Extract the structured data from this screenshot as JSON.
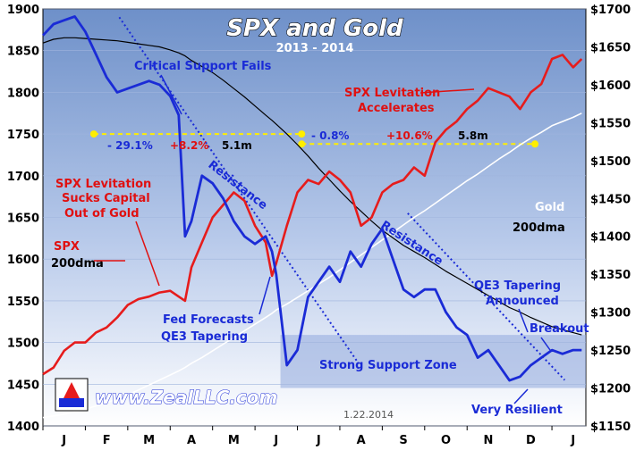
{
  "chart_data": {
    "type": "line",
    "title": "SPX and Gold",
    "subtitle": "2013 - 2014",
    "date_stamp": "1.22.2014",
    "website": "www.ZealLLC.com",
    "x_ticks": [
      "J",
      "F",
      "M",
      "A",
      "M",
      "J",
      "J",
      "A",
      "S",
      "O",
      "N",
      "D",
      "J"
    ],
    "y_left_ticks": [
      "1900",
      "1850",
      "1800",
      "1750",
      "1700",
      "1650",
      "1600",
      "1550",
      "1500",
      "1450",
      "1400"
    ],
    "y_right_ticks": [
      "$1700",
      "$1650",
      "$1600",
      "$1550",
      "$1500",
      "$1450",
      "$1400",
      "$1350",
      "$1300",
      "$1250",
      "$1200",
      "$1150"
    ],
    "ylim_left": [
      1400,
      1900
    ],
    "ylim_right": [
      1150,
      1700
    ],
    "x": [
      0,
      0.25,
      0.5,
      0.75,
      1,
      1.25,
      1.5,
      1.75,
      2,
      2.25,
      2.5,
      2.75,
      3,
      3.2,
      3.35,
      3.5,
      3.75,
      4,
      4.25,
      4.5,
      4.75,
      5,
      5.25,
      5.4,
      5.5,
      5.75,
      6,
      6.25,
      6.5,
      6.75,
      7,
      7.25,
      7.5,
      7.75,
      8,
      8.25,
      8.5,
      8.75,
      9,
      9.25,
      9.5,
      9.75,
      10,
      10.25,
      10.5,
      10.75,
      11,
      11.25,
      11.5,
      11.75,
      12,
      12.25,
      12.5,
      12.7
    ],
    "series": [
      {
        "name": "SPX",
        "axis": "left",
        "color": "#e61c1c",
        "values": [
          1462,
          1470,
          1490,
          1500,
          1500,
          1512,
          1518,
          1530,
          1545,
          1552,
          1555,
          1560,
          1562,
          1555,
          1550,
          1590,
          1620,
          1650,
          1665,
          1680,
          1670,
          1640,
          1620,
          1580,
          1595,
          1640,
          1680,
          1695,
          1690,
          1705,
          1695,
          1680,
          1640,
          1650,
          1680,
          1690,
          1695,
          1710,
          1700,
          1740,
          1755,
          1765,
          1780,
          1790,
          1805,
          1800,
          1795,
          1780,
          1800,
          1810,
          1840,
          1845,
          1830,
          1840
        ]
      },
      {
        "name": "Gold",
        "axis": "right",
        "color": "#1a2bd6",
        "values": [
          1665,
          1680,
          1685,
          1690,
          1670,
          1640,
          1610,
          1590,
          1595,
          1600,
          1605,
          1600,
          1585,
          1560,
          1400,
          1420,
          1480,
          1470,
          1450,
          1420,
          1400,
          1390,
          1400,
          1380,
          1350,
          1230,
          1250,
          1320,
          1340,
          1360,
          1340,
          1380,
          1360,
          1390,
          1410,
          1370,
          1330,
          1320,
          1330,
          1330,
          1300,
          1280,
          1270,
          1240,
          1250,
          1230,
          1210,
          1215,
          1230,
          1240,
          1250,
          1245,
          1250,
          1250
        ]
      },
      {
        "name": "SPX 200dma",
        "axis": "left",
        "color": "#ffffff",
        "values": [
          1410,
          1412,
          1414,
          1417,
          1420,
          1424,
          1428,
          1432,
          1437,
          1443,
          1449,
          1455,
          1461,
          1466,
          1470,
          1475,
          1482,
          1490,
          1498,
          1506,
          1514,
          1522,
          1530,
          1535,
          1539,
          1546,
          1554,
          1562,
          1570,
          1578,
          1587,
          1596,
          1605,
          1614,
          1623,
          1632,
          1641,
          1650,
          1658,
          1667,
          1676,
          1685,
          1694,
          1702,
          1711,
          1720,
          1728,
          1737,
          1745,
          1752,
          1760,
          1765,
          1770,
          1775
        ]
      },
      {
        "name": "Gold 200dma",
        "axis": "right",
        "color": "#000000",
        "values": [
          1655,
          1660,
          1662,
          1662,
          1661,
          1660,
          1659,
          1658,
          1656,
          1654,
          1652,
          1650,
          1646,
          1642,
          1638,
          1632,
          1624,
          1616,
          1606,
          1595,
          1584,
          1572,
          1560,
          1553,
          1548,
          1535,
          1521,
          1506,
          1490,
          1475,
          1460,
          1446,
          1433,
          1420,
          1408,
          1398,
          1388,
          1380,
          1372,
          1363,
          1354,
          1346,
          1338,
          1330,
          1322,
          1314,
          1306,
          1300,
          1293,
          1287,
          1281,
          1277,
          1273,
          1270
        ]
      }
    ],
    "ref_lines": [
      {
        "from_x": 1.2,
        "to_x": 6.1,
        "value": 1750,
        "axis": "left",
        "color": "#ffee00"
      },
      {
        "from_x": 6.1,
        "to_x": 11.6,
        "value": 1738,
        "axis": "left",
        "color": "#ffee00"
      }
    ],
    "resistance_lines": [
      {
        "from": [
          1.8,
          1890
        ],
        "to": [
          7.4,
          1478
        ],
        "axis": "left"
      },
      {
        "from": [
          8.6,
          1655
        ],
        "to": [
          12.3,
          1455
        ],
        "axis": "left"
      }
    ],
    "support_zone": {
      "from_x": 5.6,
      "to_x": 12.8,
      "low": 1200,
      "high": 1270,
      "axis": "right"
    },
    "annotations": [
      {
        "text": "Critical Support Fails",
        "style": "blue"
      },
      {
        "text": "SPX Levitation",
        "style": "red"
      },
      {
        "text": "Accelerates",
        "style": "red"
      },
      {
        "text": "SPX Levitation",
        "style": "red"
      },
      {
        "text": "Sucks Capital",
        "style": "red"
      },
      {
        "text": "Out of Gold",
        "style": "red"
      },
      {
        "text": "Resistance",
        "style": "blue"
      },
      {
        "text": "Resistance",
        "style": "blue"
      },
      {
        "text": "Gold",
        "style": "white"
      },
      {
        "text": "200dma",
        "style": "black"
      },
      {
        "text": "SPX",
        "style": "red"
      },
      {
        "text": "200dma",
        "style": "black"
      },
      {
        "text": "QE3 Tapering",
        "style": "blue"
      },
      {
        "text": "Announced",
        "style": "blue"
      },
      {
        "text": "Fed Forecasts",
        "style": "blue"
      },
      {
        "text": "QE3 Tapering",
        "style": "blue"
      },
      {
        "text": "Breakout",
        "style": "blue"
      },
      {
        "text": "Strong Support Zone",
        "style": "blue"
      },
      {
        "text": "Very Resilient",
        "style": "blue"
      }
    ],
    "stats": [
      {
        "text": "- 29.1%",
        "color": "#1a2bd6"
      },
      {
        "text": "+8.2%",
        "color": "#e01010"
      },
      {
        "text": "5.1m",
        "color": "#000000"
      },
      {
        "text": "- 0.8%",
        "color": "#1a2bd6"
      },
      {
        "text": "+10.6%",
        "color": "#e01010"
      },
      {
        "text": "5.8m",
        "color": "#000000"
      }
    ]
  }
}
